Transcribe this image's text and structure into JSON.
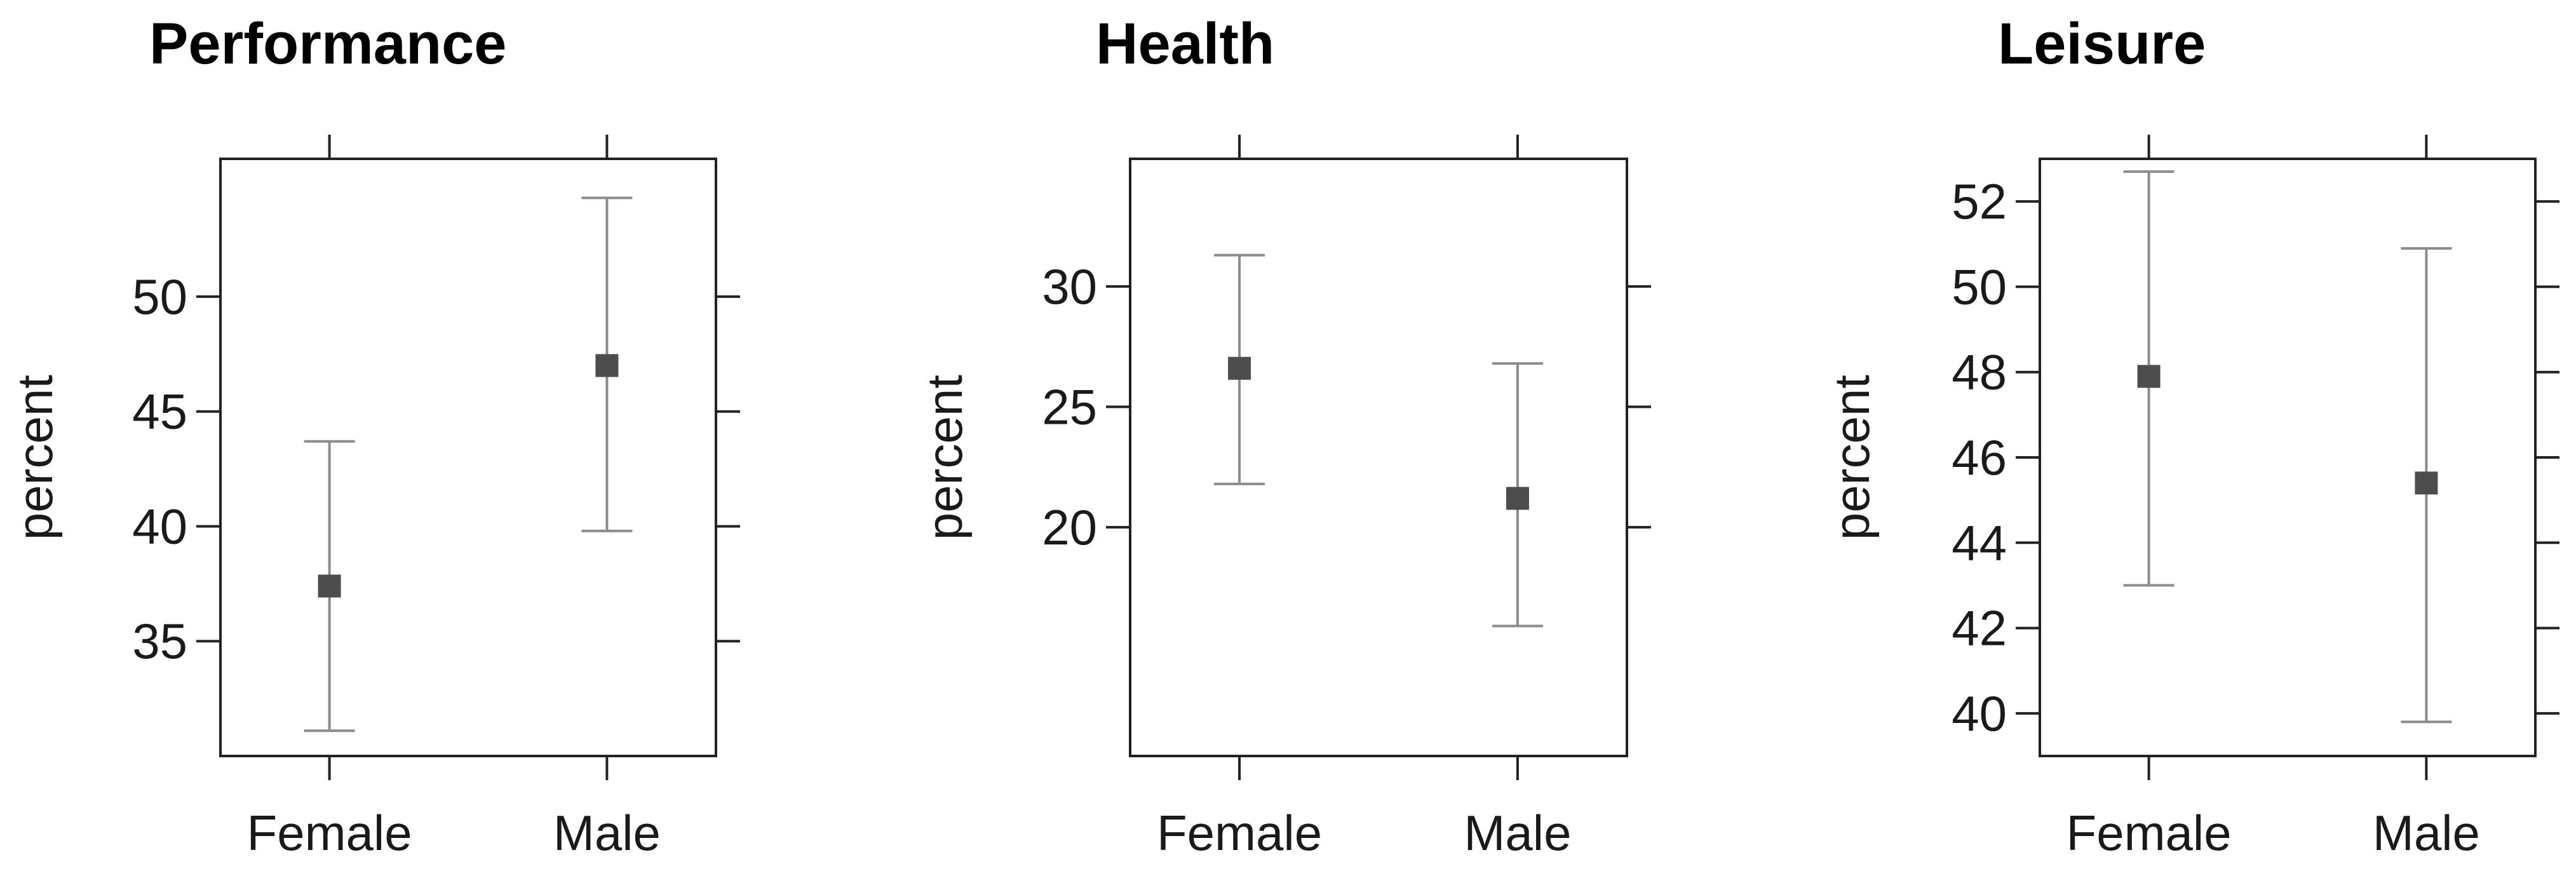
{
  "chart_data": [
    {
      "type": "scatter",
      "title": "Performance",
      "ylabel": "percent",
      "xlabel": "",
      "categories": [
        "Female",
        "Male"
      ],
      "yticks": [
        35,
        40,
        45,
        50
      ],
      "ylim": [
        30,
        56
      ],
      "points": [
        {
          "x": "Female",
          "y": 37.4,
          "lower": 31.1,
          "upper": 43.7
        },
        {
          "x": "Male",
          "y": 47.0,
          "lower": 39.8,
          "upper": 54.3
        }
      ],
      "y_tick_labels_side": "left",
      "grid": false
    },
    {
      "type": "scatter",
      "title": "Health",
      "ylabel": "percent",
      "xlabel": "",
      "categories": [
        "Female",
        "Male"
      ],
      "yticks": [
        20,
        25,
        30
      ],
      "ylim": [
        10.5,
        35.3
      ],
      "points": [
        {
          "x": "Female",
          "y": 26.6,
          "lower": 21.8,
          "upper": 31.3
        },
        {
          "x": "Male",
          "y": 21.2,
          "lower": 15.9,
          "upper": 26.8
        }
      ],
      "y_tick_labels_side": "left",
      "grid": false
    },
    {
      "type": "scatter",
      "title": "Leisure",
      "ylabel": "percent",
      "xlabel": "",
      "categories": [
        "Female",
        "Male"
      ],
      "yticks": [
        40,
        42,
        44,
        46,
        48,
        50,
        52
      ],
      "ylim": [
        39,
        53
      ],
      "points": [
        {
          "x": "Female",
          "y": 47.9,
          "lower": 43.0,
          "upper": 52.7
        },
        {
          "x": "Male",
          "y": 45.4,
          "lower": 39.8,
          "upper": 50.9
        }
      ],
      "y_tick_labels_side": "left",
      "grid": false
    }
  ],
  "colors": {
    "point": "#4d4d4d",
    "error_bar": "#8c8c8c",
    "axis": "#222222",
    "text": "#1a1a1a"
  }
}
